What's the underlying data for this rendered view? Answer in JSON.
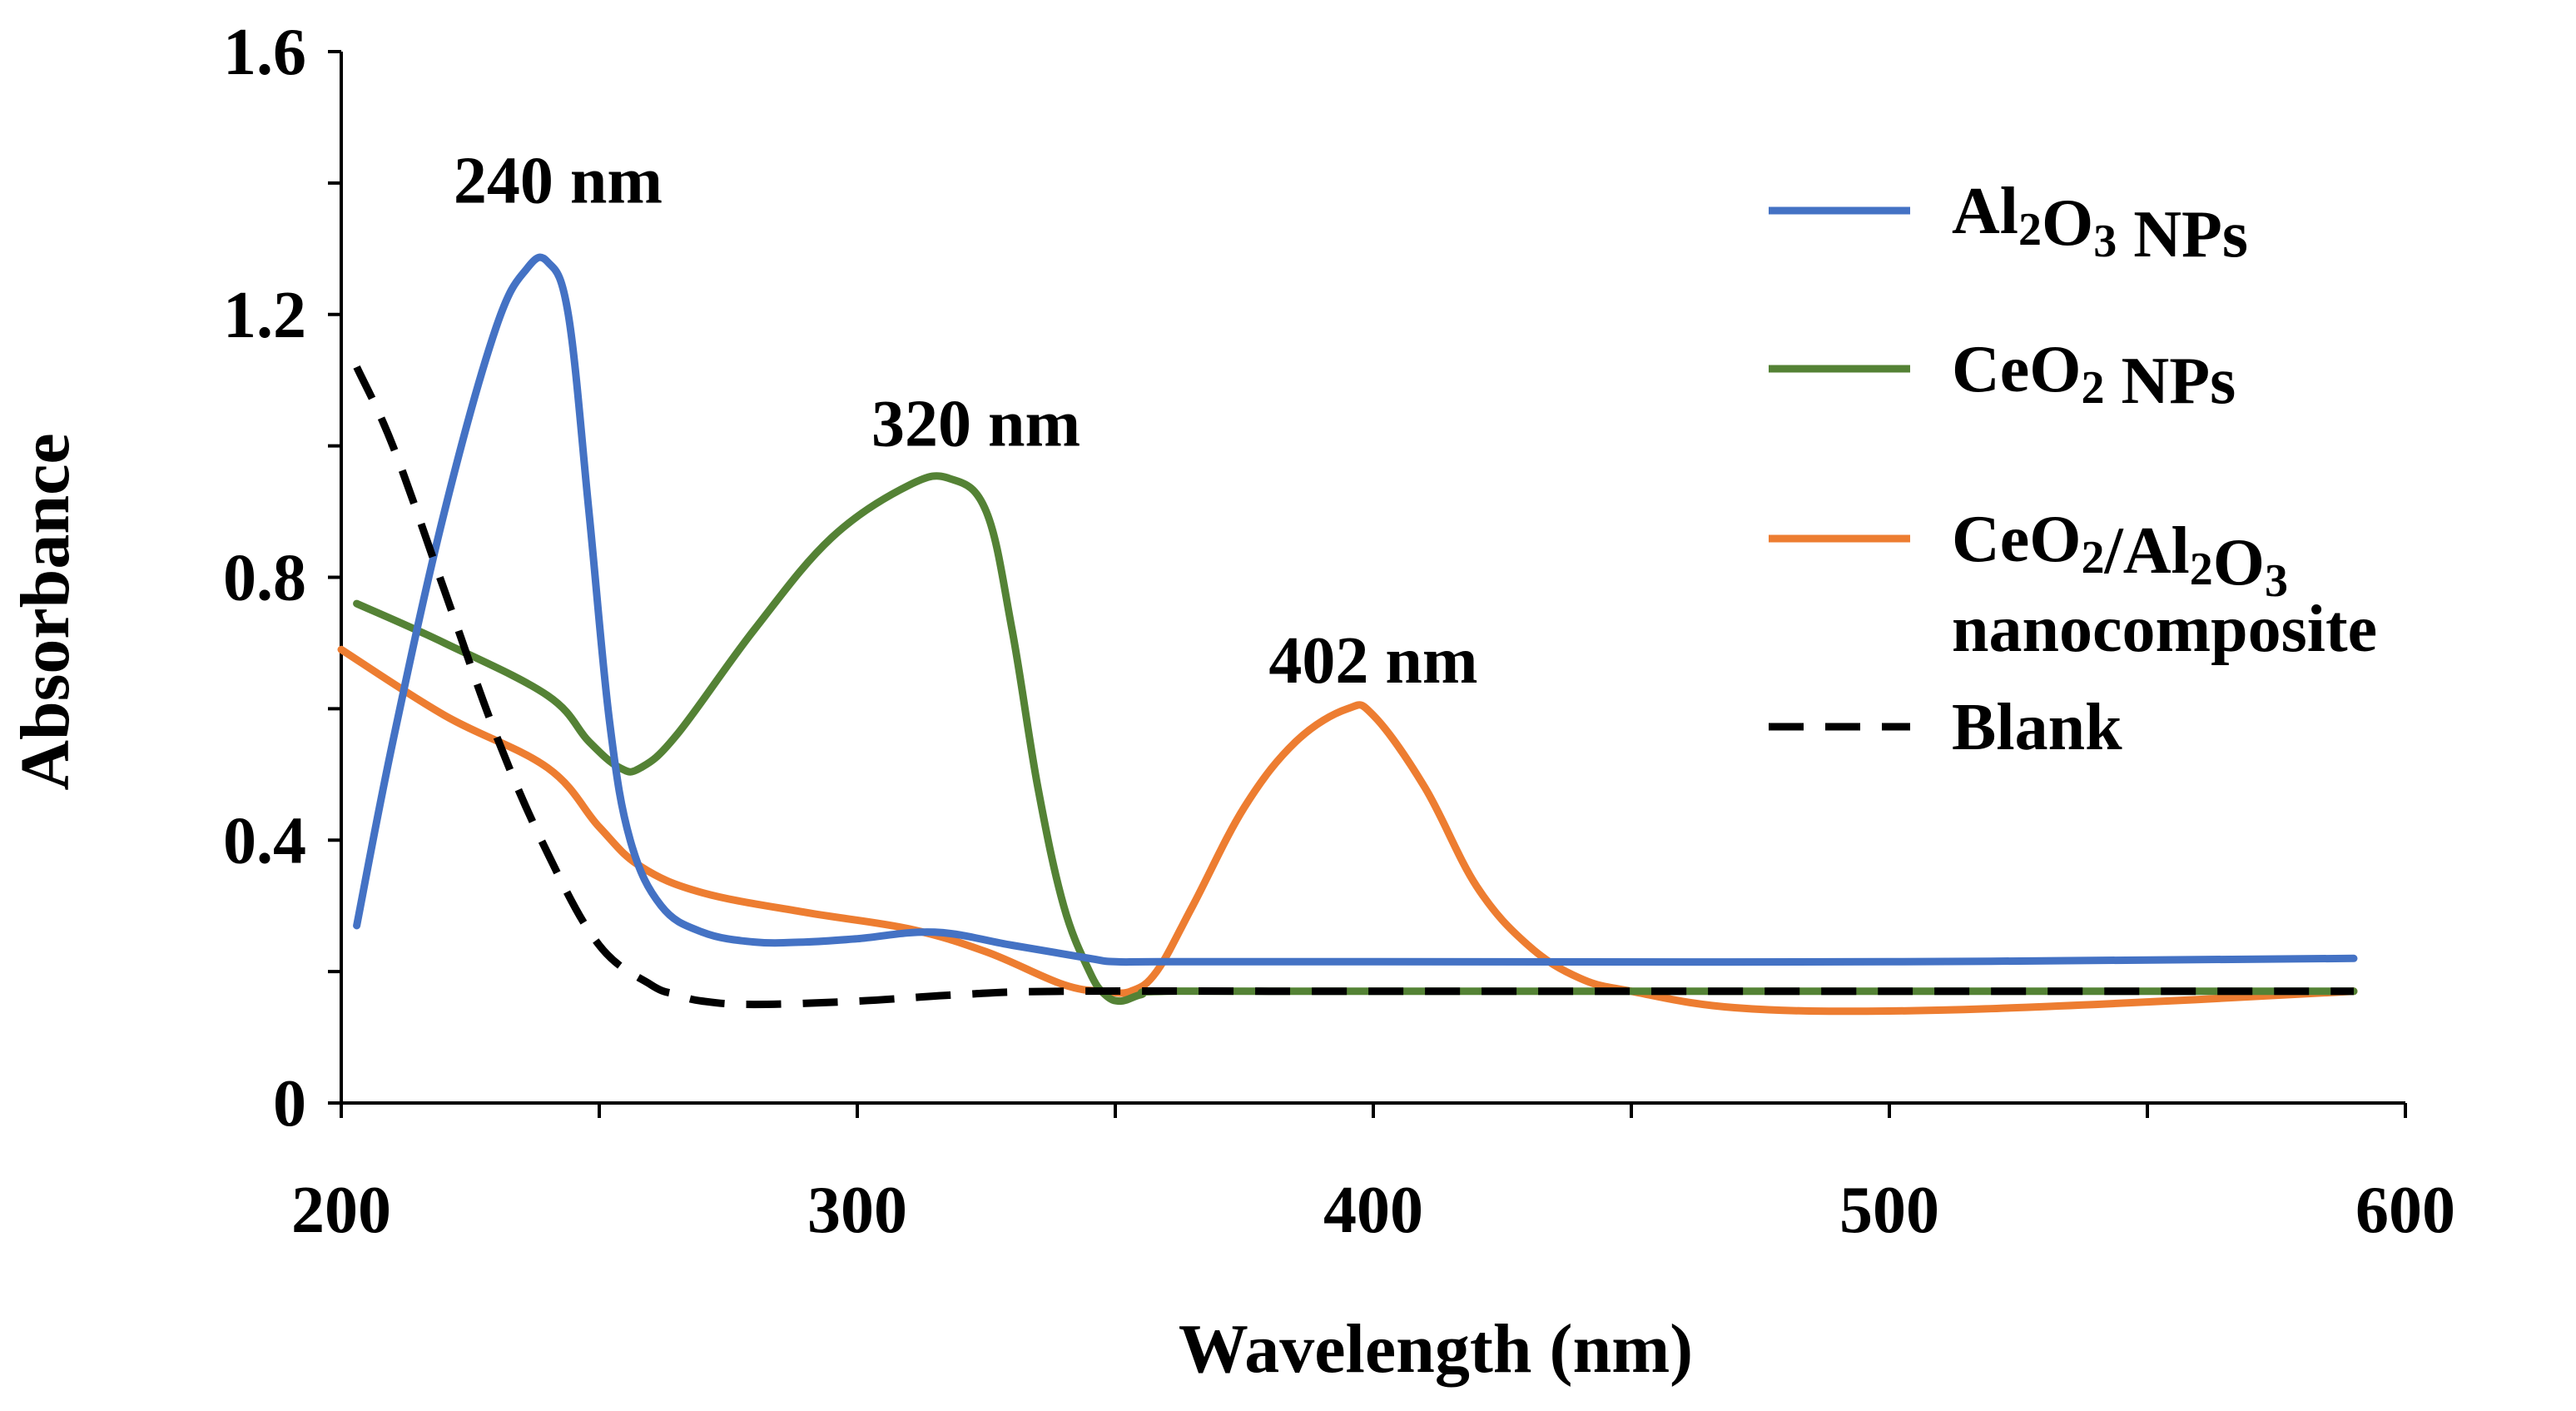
{
  "chart_data": {
    "type": "line",
    "title": "",
    "xlabel": "Wavelength (nm)",
    "ylabel": "Absorbance",
    "xlim": [
      200,
      600
    ],
    "ylim": [
      0,
      1.6
    ],
    "xticks": [
      "200",
      "300",
      "400",
      "500",
      "600"
    ],
    "yticks": [
      "0",
      "0.4",
      "0.8",
      "1.2",
      "1.6"
    ],
    "grid": false,
    "legend_position": "right",
    "series": [
      {
        "name": "Al2O3 NPs",
        "legend_parts": [
          [
            "Al",
            ""
          ],
          [
            "2",
            "sub"
          ],
          [
            "O",
            ""
          ],
          [
            "3",
            "sub"
          ],
          [
            " NPs",
            ""
          ]
        ],
        "color": "#4472C4",
        "dash": "solid",
        "x": [
          203,
          210,
          220,
          230,
          236,
          240,
          244,
          248,
          252,
          256,
          262,
          270,
          280,
          290,
          300,
          315,
          330,
          345,
          350,
          360,
          400,
          500,
          590
        ],
        "y": [
          0.27,
          0.55,
          0.9,
          1.18,
          1.27,
          1.28,
          1.2,
          0.9,
          0.58,
          0.4,
          0.3,
          0.26,
          0.245,
          0.245,
          0.25,
          0.26,
          0.24,
          0.22,
          0.215,
          0.215,
          0.215,
          0.215,
          0.22
        ]
      },
      {
        "name": "CeO2 NPs",
        "legend_parts": [
          [
            "CeO",
            ""
          ],
          [
            "2",
            "sub"
          ],
          [
            " NPs",
            ""
          ]
        ],
        "color": "#548235",
        "dash": "solid",
        "x": [
          203,
          220,
          240,
          248,
          254,
          258,
          265,
          280,
          295,
          310,
          318,
          325,
          330,
          335,
          340,
          345,
          348,
          351,
          355,
          360,
          400,
          500,
          590
        ],
        "y": [
          0.76,
          0.7,
          0.62,
          0.55,
          0.51,
          0.51,
          0.56,
          0.72,
          0.86,
          0.94,
          0.95,
          0.9,
          0.72,
          0.48,
          0.3,
          0.2,
          0.165,
          0.155,
          0.165,
          0.17,
          0.17,
          0.17,
          0.17
        ]
      },
      {
        "name": "CeO2/Al2O3 nanocomposite",
        "legend_parts": [
          [
            "CeO",
            ""
          ],
          [
            "2",
            "sub"
          ],
          [
            "/Al",
            ""
          ],
          [
            "2",
            "sub"
          ],
          [
            "O",
            ""
          ],
          [
            "3",
            "sub"
          ]
        ],
        "legend_line2": "nanocomposite",
        "color": "#ED7D31",
        "dash": "solid",
        "x": [
          200,
          220,
          240,
          250,
          258,
          270,
          290,
          310,
          325,
          340,
          348,
          353,
          358,
          365,
          375,
          385,
          395,
          400,
          410,
          420,
          430,
          440,
          450,
          470,
          500,
          540,
          590
        ],
        "y": [
          0.69,
          0.59,
          0.51,
          0.42,
          0.36,
          0.32,
          0.29,
          0.265,
          0.23,
          0.18,
          0.17,
          0.17,
          0.2,
          0.3,
          0.45,
          0.55,
          0.6,
          0.59,
          0.48,
          0.33,
          0.24,
          0.19,
          0.17,
          0.145,
          0.14,
          0.15,
          0.17
        ]
      },
      {
        "name": "Blank",
        "legend_parts": [
          [
            "Blank",
            ""
          ]
        ],
        "color": "#000000",
        "dash": "dashed",
        "x": [
          203,
          210,
          220,
          230,
          240,
          250,
          260,
          265,
          270,
          280,
          300,
          320,
          340,
          400,
          500,
          590
        ],
        "y": [
          1.12,
          1.0,
          0.78,
          0.56,
          0.38,
          0.24,
          0.18,
          0.165,
          0.155,
          0.15,
          0.155,
          0.165,
          0.17,
          0.17,
          0.17,
          0.17
        ]
      }
    ],
    "annotations": [
      {
        "text": "240 nm",
        "x": 242,
        "y": 1.37
      },
      {
        "text": "320 nm",
        "x": 323,
        "y": 1.0
      },
      {
        "text": "402 nm",
        "x": 400,
        "y": 0.64
      }
    ]
  }
}
